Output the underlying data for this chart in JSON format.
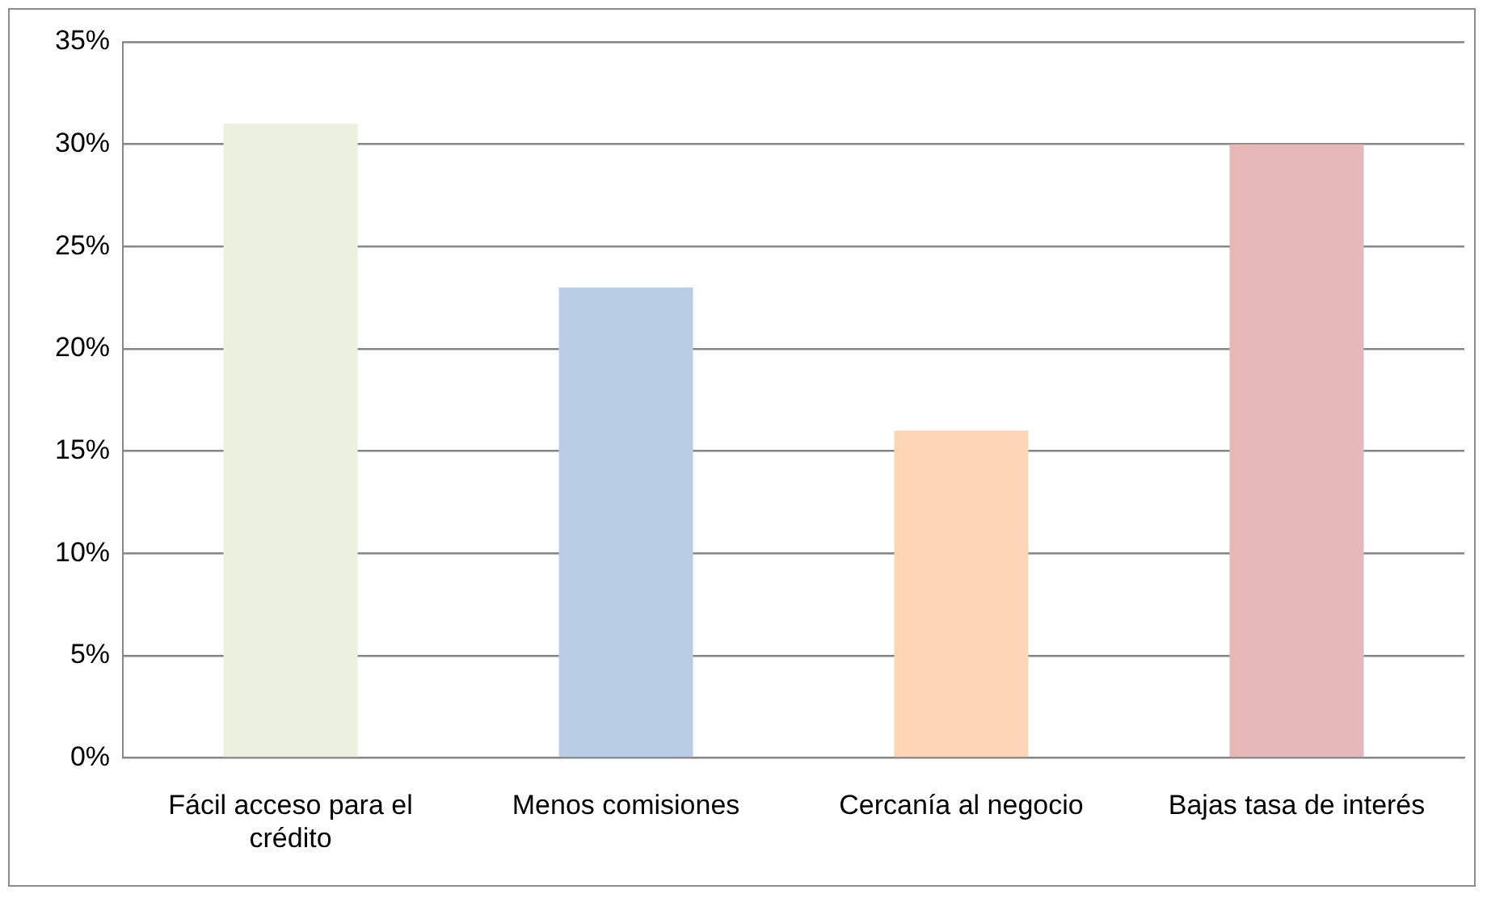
{
  "chart_data": {
    "type": "bar",
    "categories": [
      "Fácil acceso para el crédito",
      "Menos comisiones",
      "Cercanía al negocio",
      "Bajas tasa de interés"
    ],
    "values": [
      31,
      23,
      16,
      30
    ],
    "colors": [
      "#ebf1de",
      "#b9cde5",
      "#fcd5b5",
      "#e6b9b8"
    ],
    "ylim": [
      0,
      35
    ],
    "yticks": [
      {
        "value": 0,
        "label": "0%"
      },
      {
        "value": 5,
        "label": "5%"
      },
      {
        "value": 10,
        "label": "10%"
      },
      {
        "value": 15,
        "label": "15%"
      },
      {
        "value": 20,
        "label": "20%"
      },
      {
        "value": 25,
        "label": "25%"
      },
      {
        "value": 30,
        "label": "30%"
      },
      {
        "value": 35,
        "label": "35%"
      }
    ],
    "grid": "y",
    "legend": false
  }
}
